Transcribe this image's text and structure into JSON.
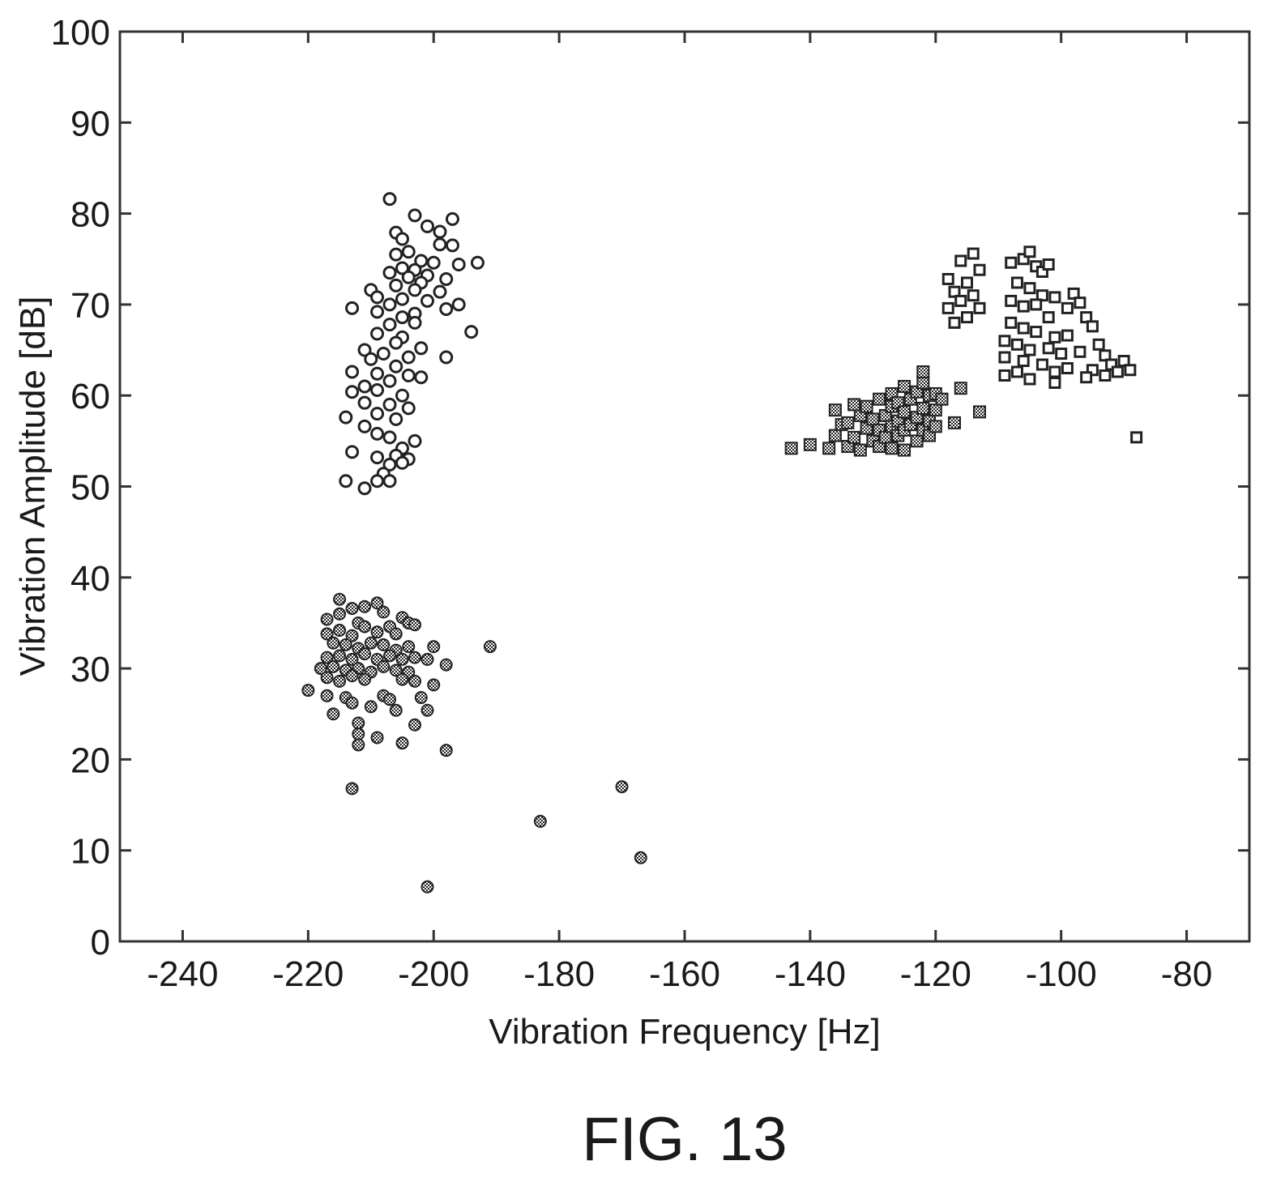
{
  "caption": "FIG. 13",
  "chart_data": {
    "type": "scatter",
    "xlabel": "Vibration Frequency [Hz]",
    "ylabel": "Vibration Amplitude [dB]",
    "xlim": [
      -250,
      -70
    ],
    "ylim": [
      0,
      100
    ],
    "xticks": [
      -240,
      -220,
      -200,
      -180,
      -160,
      -140,
      -120,
      -100,
      -80
    ],
    "xtick_labels": [
      "-240",
      "-220",
      "-200",
      "-180",
      "-160",
      "-140",
      "-120",
      "-100",
      "-80"
    ],
    "yticks": [
      0,
      10,
      20,
      30,
      40,
      50,
      60,
      70,
      80,
      90,
      100
    ],
    "ytick_labels": [
      "0",
      "10",
      "20",
      "30",
      "40",
      "50",
      "60",
      "70",
      "80",
      "90",
      "100"
    ],
    "grid": false,
    "legend": "none",
    "series": [
      {
        "marker": "open-circle",
        "points": [
          [
            -207,
            81.6
          ],
          [
            -203,
            79.8
          ],
          [
            -197,
            79.4
          ],
          [
            -201,
            78.6
          ],
          [
            -199,
            78.0
          ],
          [
            -206,
            77.9
          ],
          [
            -205,
            77.2
          ],
          [
            -199,
            76.6
          ],
          [
            -197,
            76.5
          ],
          [
            -204,
            75.8
          ],
          [
            -206,
            75.5
          ],
          [
            -202,
            74.8
          ],
          [
            -200,
            74.6
          ],
          [
            -193,
            74.6
          ],
          [
            -205,
            74.0
          ],
          [
            -203,
            73.8
          ],
          [
            -196,
            74.4
          ],
          [
            -207,
            73.5
          ],
          [
            -204,
            73.0
          ],
          [
            -201,
            73.2
          ],
          [
            -198,
            72.8
          ],
          [
            -202,
            72.4
          ],
          [
            -206,
            72.1
          ],
          [
            -210,
            71.6
          ],
          [
            -203,
            71.6
          ],
          [
            -199,
            71.4
          ],
          [
            -209,
            70.8
          ],
          [
            -205,
            70.6
          ],
          [
            -201,
            70.4
          ],
          [
            -207,
            70.0
          ],
          [
            -213,
            69.6
          ],
          [
            -196,
            70.0
          ],
          [
            -209,
            69.2
          ],
          [
            -203,
            69.0
          ],
          [
            -205,
            68.6
          ],
          [
            -198,
            69.5
          ],
          [
            -207,
            67.8
          ],
          [
            -203,
            68.0
          ],
          [
            -209,
            66.8
          ],
          [
            -205,
            66.4
          ],
          [
            -194,
            67.0
          ],
          [
            -206,
            65.8
          ],
          [
            -211,
            65.0
          ],
          [
            -202,
            65.2
          ],
          [
            -208,
            64.6
          ],
          [
            -204,
            64.2
          ],
          [
            -210,
            64.0
          ],
          [
            -198,
            64.2
          ],
          [
            -206,
            63.2
          ],
          [
            -213,
            62.6
          ],
          [
            -209,
            62.4
          ],
          [
            -204,
            62.2
          ],
          [
            -202,
            62.0
          ],
          [
            -207,
            61.6
          ],
          [
            -211,
            61.0
          ],
          [
            -213,
            60.4
          ],
          [
            -209,
            60.6
          ],
          [
            -205,
            60.0
          ],
          [
            -207,
            59.0
          ],
          [
            -211,
            59.2
          ],
          [
            -204,
            58.6
          ],
          [
            -209,
            58.0
          ],
          [
            -214,
            57.6
          ],
          [
            -206,
            57.4
          ],
          [
            -211,
            56.6
          ],
          [
            -209,
            55.8
          ],
          [
            -207,
            55.4
          ],
          [
            -203,
            55.0
          ],
          [
            -205,
            54.2
          ],
          [
            -213,
            53.8
          ],
          [
            -209,
            53.2
          ],
          [
            -206,
            53.4
          ],
          [
            -204,
            53.0
          ],
          [
            -207,
            52.4
          ],
          [
            -205,
            52.6
          ],
          [
            -208,
            51.4
          ],
          [
            -209,
            50.6
          ],
          [
            -214,
            50.6
          ],
          [
            -211,
            49.8
          ],
          [
            -207,
            50.6
          ]
        ]
      },
      {
        "marker": "crosshatched-circle",
        "points": [
          [
            -215,
            37.6
          ],
          [
            -213,
            36.6
          ],
          [
            -211,
            36.8
          ],
          [
            -209,
            37.2
          ],
          [
            -217,
            35.4
          ],
          [
            -215,
            36.0
          ],
          [
            -208,
            36.2
          ],
          [
            -205,
            35.6
          ],
          [
            -204,
            35.0
          ],
          [
            -203,
            34.8
          ],
          [
            -212,
            35.0
          ],
          [
            -217,
            33.8
          ],
          [
            -215,
            34.2
          ],
          [
            -213,
            33.6
          ],
          [
            -211,
            34.6
          ],
          [
            -209,
            34.0
          ],
          [
            -207,
            34.6
          ],
          [
            -206,
            33.8
          ],
          [
            -216,
            32.8
          ],
          [
            -214,
            32.6
          ],
          [
            -212,
            32.2
          ],
          [
            -210,
            32.8
          ],
          [
            -208,
            32.6
          ],
          [
            -206,
            32.0
          ],
          [
            -204,
            32.4
          ],
          [
            -200,
            32.4
          ],
          [
            -191,
            32.4
          ],
          [
            -217,
            31.2
          ],
          [
            -215,
            31.4
          ],
          [
            -213,
            31.0
          ],
          [
            -211,
            31.6
          ],
          [
            -209,
            31.0
          ],
          [
            -207,
            31.4
          ],
          [
            -205,
            31.0
          ],
          [
            -203,
            31.2
          ],
          [
            -201,
            31.0
          ],
          [
            -218,
            30.0
          ],
          [
            -216,
            30.2
          ],
          [
            -214,
            29.8
          ],
          [
            -212,
            30.0
          ],
          [
            -210,
            29.6
          ],
          [
            -208,
            30.2
          ],
          [
            -206,
            29.8
          ],
          [
            -204,
            29.6
          ],
          [
            -198,
            30.4
          ],
          [
            -217,
            29.0
          ],
          [
            -215,
            28.6
          ],
          [
            -213,
            29.2
          ],
          [
            -211,
            28.8
          ],
          [
            -205,
            28.8
          ],
          [
            -203,
            28.6
          ],
          [
            -200,
            28.2
          ],
          [
            -220,
            27.6
          ],
          [
            -217,
            27.0
          ],
          [
            -214,
            26.8
          ],
          [
            -208,
            27.0
          ],
          [
            -207,
            26.6
          ],
          [
            -202,
            26.8
          ],
          [
            -213,
            26.2
          ],
          [
            -210,
            25.8
          ],
          [
            -206,
            25.4
          ],
          [
            -216,
            25.0
          ],
          [
            -201,
            25.4
          ],
          [
            -212,
            24.0
          ],
          [
            -203,
            23.8
          ],
          [
            -212,
            22.8
          ],
          [
            -209,
            22.4
          ],
          [
            -205,
            21.8
          ],
          [
            -212,
            21.6
          ],
          [
            -198,
            21.0
          ],
          [
            -213,
            16.8
          ],
          [
            -170,
            17.0
          ],
          [
            -183,
            13.2
          ],
          [
            -167,
            9.2
          ],
          [
            -201,
            6.0
          ]
        ]
      },
      {
        "marker": "crosshatched-square",
        "points": [
          [
            -143,
            54.2
          ],
          [
            -140,
            54.6
          ],
          [
            -137,
            54.2
          ],
          [
            -136,
            55.6
          ],
          [
            -134,
            54.4
          ],
          [
            -135,
            56.8
          ],
          [
            -136,
            58.4
          ],
          [
            -134,
            57.0
          ],
          [
            -133,
            55.4
          ],
          [
            -132,
            54.0
          ],
          [
            -132,
            57.8
          ],
          [
            -133,
            59.0
          ],
          [
            -131,
            56.4
          ],
          [
            -131,
            58.8
          ],
          [
            -130,
            55.0
          ],
          [
            -130,
            57.4
          ],
          [
            -129,
            54.4
          ],
          [
            -129,
            56.2
          ],
          [
            -129,
            59.6
          ],
          [
            -128,
            55.4
          ],
          [
            -128,
            57.8
          ],
          [
            -127,
            54.2
          ],
          [
            -127,
            56.6
          ],
          [
            -127,
            58.8
          ],
          [
            -127,
            60.2
          ],
          [
            -126,
            55.6
          ],
          [
            -126,
            57.2
          ],
          [
            -126,
            59.2
          ],
          [
            -125,
            54.0
          ],
          [
            -125,
            56.2
          ],
          [
            -125,
            58.2
          ],
          [
            -125,
            61.0
          ],
          [
            -124,
            56.8
          ],
          [
            -124,
            59.6
          ],
          [
            -123,
            55.0
          ],
          [
            -123,
            57.6
          ],
          [
            -123,
            60.4
          ],
          [
            -122,
            56.2
          ],
          [
            -122,
            58.6
          ],
          [
            -122,
            61.4
          ],
          [
            -121,
            55.6
          ],
          [
            -121,
            57.2
          ],
          [
            -121,
            60.0
          ],
          [
            -120,
            56.6
          ],
          [
            -120,
            58.4
          ],
          [
            -120,
            60.2
          ],
          [
            -119,
            59.6
          ],
          [
            -122,
            62.6
          ],
          [
            -117,
            57.0
          ],
          [
            -116,
            60.8
          ],
          [
            -113,
            58.2
          ]
        ]
      },
      {
        "marker": "open-square",
        "points": [
          [
            -118,
            72.8
          ],
          [
            -116,
            74.8
          ],
          [
            -114,
            75.6
          ],
          [
            -117,
            71.4
          ],
          [
            -115,
            72.4
          ],
          [
            -113,
            73.8
          ],
          [
            -118,
            69.6
          ],
          [
            -116,
            70.4
          ],
          [
            -114,
            71.0
          ],
          [
            -113,
            69.6
          ],
          [
            -117,
            68.0
          ],
          [
            -115,
            68.6
          ],
          [
            -108,
            74.6
          ],
          [
            -106,
            75.0
          ],
          [
            -105,
            75.8
          ],
          [
            -104,
            74.2
          ],
          [
            -103,
            73.6
          ],
          [
            -102,
            74.4
          ],
          [
            -107,
            72.4
          ],
          [
            -105,
            71.8
          ],
          [
            -103,
            71.0
          ],
          [
            -101,
            70.8
          ],
          [
            -108,
            70.4
          ],
          [
            -106,
            69.8
          ],
          [
            -104,
            70.0
          ],
          [
            -102,
            68.6
          ],
          [
            -98,
            71.2
          ],
          [
            -97,
            70.2
          ],
          [
            -99,
            69.6
          ],
          [
            -108,
            68.0
          ],
          [
            -106,
            67.4
          ],
          [
            -104,
            67.0
          ],
          [
            -101,
            66.4
          ],
          [
            -99,
            66.6
          ],
          [
            -96,
            68.6
          ],
          [
            -95,
            67.6
          ],
          [
            -109,
            66.0
          ],
          [
            -107,
            65.6
          ],
          [
            -105,
            65.0
          ],
          [
            -102,
            65.2
          ],
          [
            -100,
            64.6
          ],
          [
            -97,
            64.8
          ],
          [
            -94,
            65.6
          ],
          [
            -93,
            64.4
          ],
          [
            -109,
            64.2
          ],
          [
            -106,
            63.8
          ],
          [
            -103,
            63.4
          ],
          [
            -101,
            62.6
          ],
          [
            -99,
            63.0
          ],
          [
            -95,
            62.8
          ],
          [
            -92,
            63.4
          ],
          [
            -90,
            63.8
          ],
          [
            -109,
            62.2
          ],
          [
            -107,
            62.6
          ],
          [
            -105,
            61.8
          ],
          [
            -101,
            61.4
          ],
          [
            -96,
            62.0
          ],
          [
            -93,
            62.2
          ],
          [
            -91,
            62.6
          ],
          [
            -89,
            62.8
          ],
          [
            -88,
            55.4
          ]
        ]
      }
    ]
  }
}
